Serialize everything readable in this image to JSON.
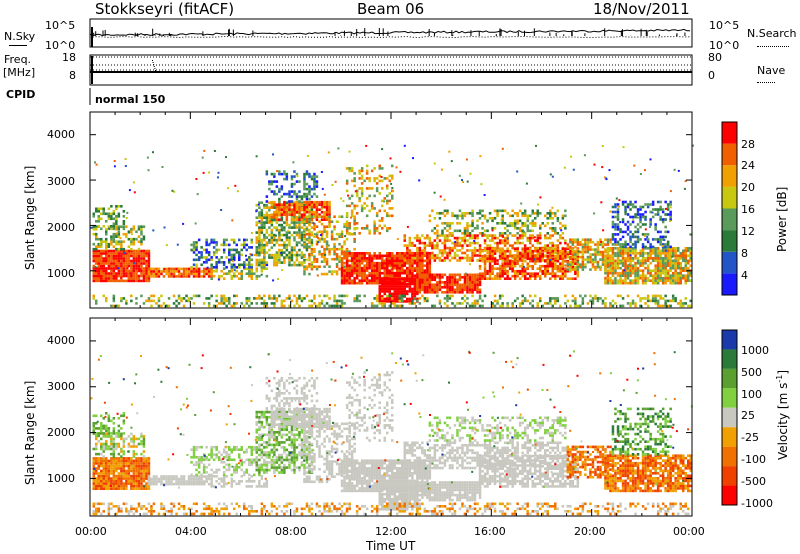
{
  "header": {
    "station": "Stokkseyri (fitACF)",
    "beam": "Beam 06",
    "date": "18/Nov/2011"
  },
  "noise_panel": {
    "left_label": "N.Sky",
    "right_label": "N.Search",
    "ticks": [
      "10^5",
      "10^0"
    ]
  },
  "freq_panel": {
    "label_top": "Freq.",
    "label_unit": "[MHz]",
    "left_ticks": [
      "18",
      "8"
    ],
    "right_ticks": [
      "80",
      "0"
    ],
    "right_label": "Nave"
  },
  "cpid_panel": {
    "label": "CPID",
    "mode": "normal 150"
  },
  "chart_data": [
    {
      "type": "heatmap",
      "ylabel": "Slant Range [km]",
      "yticks": [
        "1000",
        "2000",
        "3000",
        "4000"
      ],
      "ylim": [
        180,
        4500
      ],
      "xlim": [
        0,
        24
      ],
      "colorbar": {
        "label": "Power [dB]",
        "ticks": [
          "4",
          "8",
          "12",
          "16",
          "20",
          "24",
          "28"
        ],
        "colors": [
          "#1a1aff",
          "#2255c8",
          "#2a7a3a",
          "#5a9a5a",
          "#c8c810",
          "#f0a000",
          "#f06000",
          "#ff0000"
        ]
      }
    },
    {
      "type": "heatmap",
      "ylabel": "Slant Range [km]",
      "yticks": [
        "1000",
        "2000",
        "3000",
        "4000"
      ],
      "ylim": [
        180,
        4500
      ],
      "xlim": [
        0,
        24
      ],
      "xlabel": "Time UT",
      "xticks": [
        "00:00",
        "04:00",
        "08:00",
        "12:00",
        "16:00",
        "20:00",
        "00:00"
      ],
      "colorbar": {
        "label": "Velocity",
        "unit": "[m s",
        "unit_sup": "-1",
        "unit_close": "]",
        "ticks": [
          "1000",
          "500",
          "100",
          "25",
          "-25",
          "-100",
          "-500",
          "-1000"
        ],
        "colors": [
          "#1a3aaa",
          "#2a7a3a",
          "#5aa030",
          "#80d040",
          "#c8c8c0",
          "#f0a000",
          "#f07000",
          "#f04000",
          "#ff0000"
        ]
      }
    }
  ]
}
